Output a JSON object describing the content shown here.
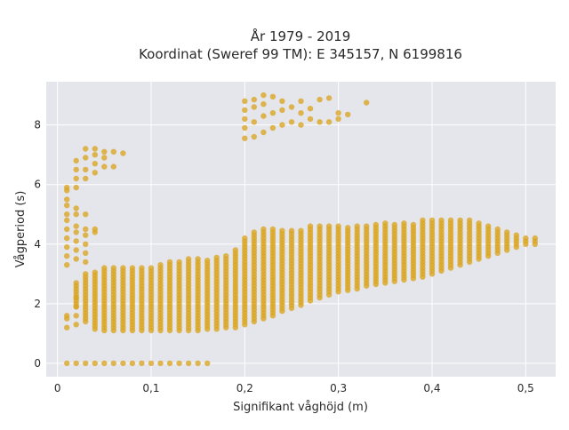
{
  "chart_data": {
    "type": "scatter",
    "title_line1": "År 1979 - 2019",
    "title_line2": "Koordinat (Sweref 99 TM): E 345157, N 6199816",
    "xlabel": "Signifikant våghöjd (m)",
    "ylabel": "Vågperiod (s)",
    "xlim": [
      -0.012,
      0.532
    ],
    "ylim": [
      -0.45,
      9.45
    ],
    "xticks": [
      0,
      0.1,
      0.2,
      0.3,
      0.4,
      0.5
    ],
    "xtick_labels": [
      "0",
      "0,1",
      "0,2",
      "0,3",
      "0,4",
      "0,5"
    ],
    "yticks": [
      0,
      2,
      4,
      6,
      8
    ],
    "ytick_labels": [
      "0",
      "2",
      "4",
      "6",
      "8"
    ],
    "grid": true,
    "background": "#e5e5ec",
    "marker_color": "#daa520",
    "series": [
      {
        "points": [
          [
            0.01,
            0
          ],
          [
            0.02,
            0
          ],
          [
            0.03,
            0
          ],
          [
            0.04,
            0
          ],
          [
            0.05,
            0
          ],
          [
            0.06,
            0
          ],
          [
            0.07,
            0
          ],
          [
            0.08,
            0
          ],
          [
            0.09,
            0
          ],
          [
            0.1,
            0
          ],
          [
            0.11,
            0
          ],
          [
            0.12,
            0
          ],
          [
            0.13,
            0
          ],
          [
            0.14,
            0
          ],
          [
            0.15,
            0
          ],
          [
            0.16,
            0
          ],
          [
            0.01,
            1.2
          ],
          [
            0.01,
            1.5
          ],
          [
            0.01,
            1.6
          ],
          [
            0.01,
            3.3
          ],
          [
            0.01,
            3.6
          ],
          [
            0.01,
            3.9
          ],
          [
            0.01,
            4.2
          ],
          [
            0.01,
            4.5
          ],
          [
            0.01,
            4.8
          ],
          [
            0.01,
            5.0
          ],
          [
            0.01,
            5.3
          ],
          [
            0.01,
            5.5
          ],
          [
            0.01,
            5.8
          ],
          [
            0.01,
            5.9
          ],
          [
            0.02,
            1.3
          ],
          [
            0.02,
            1.6
          ],
          [
            0.02,
            1.9
          ],
          [
            0.02,
            2.2
          ],
          [
            0.02,
            3.5
          ],
          [
            0.02,
            3.8
          ],
          [
            0.02,
            4.1
          ],
          [
            0.02,
            4.4
          ],
          [
            0.02,
            4.6
          ],
          [
            0.02,
            5.0
          ],
          [
            0.02,
            5.2
          ],
          [
            0.02,
            5.9
          ],
          [
            0.02,
            6.2
          ],
          [
            0.02,
            6.5
          ],
          [
            0.02,
            6.8
          ],
          [
            0.03,
            3.4
          ],
          [
            0.03,
            3.7
          ],
          [
            0.03,
            4.0
          ],
          [
            0.03,
            4.3
          ],
          [
            0.03,
            4.5
          ],
          [
            0.03,
            5.0
          ],
          [
            0.03,
            6.2
          ],
          [
            0.03,
            6.5
          ],
          [
            0.03,
            6.9
          ],
          [
            0.03,
            7.2
          ],
          [
            0.04,
            4.4
          ],
          [
            0.04,
            4.5
          ],
          [
            0.04,
            6.4
          ],
          [
            0.04,
            6.7
          ],
          [
            0.04,
            7.0
          ],
          [
            0.04,
            7.2
          ],
          [
            0.05,
            6.6
          ],
          [
            0.05,
            6.9
          ],
          [
            0.05,
            7.1
          ],
          [
            0.06,
            7.1
          ],
          [
            0.06,
            6.6
          ],
          [
            0.07,
            7.05
          ],
          [
            0.2,
            7.55
          ],
          [
            0.2,
            7.9
          ],
          [
            0.2,
            8.2
          ],
          [
            0.2,
            8.5
          ],
          [
            0.2,
            8.8
          ],
          [
            0.21,
            7.6
          ],
          [
            0.21,
            8.1
          ],
          [
            0.21,
            8.6
          ],
          [
            0.21,
            8.85
          ],
          [
            0.22,
            7.75
          ],
          [
            0.22,
            8.3
          ],
          [
            0.22,
            8.7
          ],
          [
            0.22,
            9.0
          ],
          [
            0.23,
            7.9
          ],
          [
            0.23,
            8.4
          ],
          [
            0.23,
            8.95
          ],
          [
            0.24,
            8.0
          ],
          [
            0.24,
            8.5
          ],
          [
            0.24,
            8.8
          ],
          [
            0.25,
            8.1
          ],
          [
            0.25,
            8.6
          ],
          [
            0.26,
            8.0
          ],
          [
            0.26,
            8.4
          ],
          [
            0.26,
            8.8
          ],
          [
            0.27,
            8.2
          ],
          [
            0.27,
            8.55
          ],
          [
            0.28,
            8.1
          ],
          [
            0.28,
            8.85
          ],
          [
            0.29,
            8.1
          ],
          [
            0.29,
            8.9
          ],
          [
            0.3,
            8.2
          ],
          [
            0.3,
            8.4
          ],
          [
            0.31,
            8.35
          ],
          [
            0.33,
            8.75
          ]
        ]
      }
    ],
    "bands": [
      {
        "x_from": 0.02,
        "x_to": 0.51,
        "x_step": 0.01,
        "low": [
          1.9,
          1.4,
          1.15,
          1.1,
          1.1,
          1.1,
          1.1,
          1.1,
          1.1,
          1.1,
          1.1,
          1.1,
          1.1,
          1.1,
          1.15,
          1.15,
          1.2,
          1.2,
          1.3,
          1.4,
          1.5,
          1.6,
          1.75,
          1.85,
          1.95,
          2.1,
          2.2,
          2.3,
          2.4,
          2.45,
          2.5,
          2.6,
          2.65,
          2.7,
          2.75,
          2.8,
          2.85,
          2.9,
          3.0,
          3.1,
          3.2,
          3.3,
          3.4,
          3.5,
          3.6,
          3.7,
          3.8,
          3.9,
          4.0,
          4.0
        ],
        "high": [
          2.7,
          3.0,
          3.1,
          3.2,
          3.2,
          3.2,
          3.2,
          3.2,
          3.2,
          3.3,
          3.4,
          3.4,
          3.5,
          3.5,
          3.5,
          3.6,
          3.6,
          3.8,
          4.2,
          4.4,
          4.5,
          4.5,
          4.5,
          4.5,
          4.5,
          4.6,
          4.6,
          4.6,
          4.6,
          4.6,
          4.6,
          4.6,
          4.7,
          4.7,
          4.7,
          4.7,
          4.7,
          4.8,
          4.8,
          4.8,
          4.8,
          4.8,
          4.8,
          4.7,
          4.6,
          4.5,
          4.4,
          4.3,
          4.2,
          4.2
        ]
      }
    ]
  }
}
